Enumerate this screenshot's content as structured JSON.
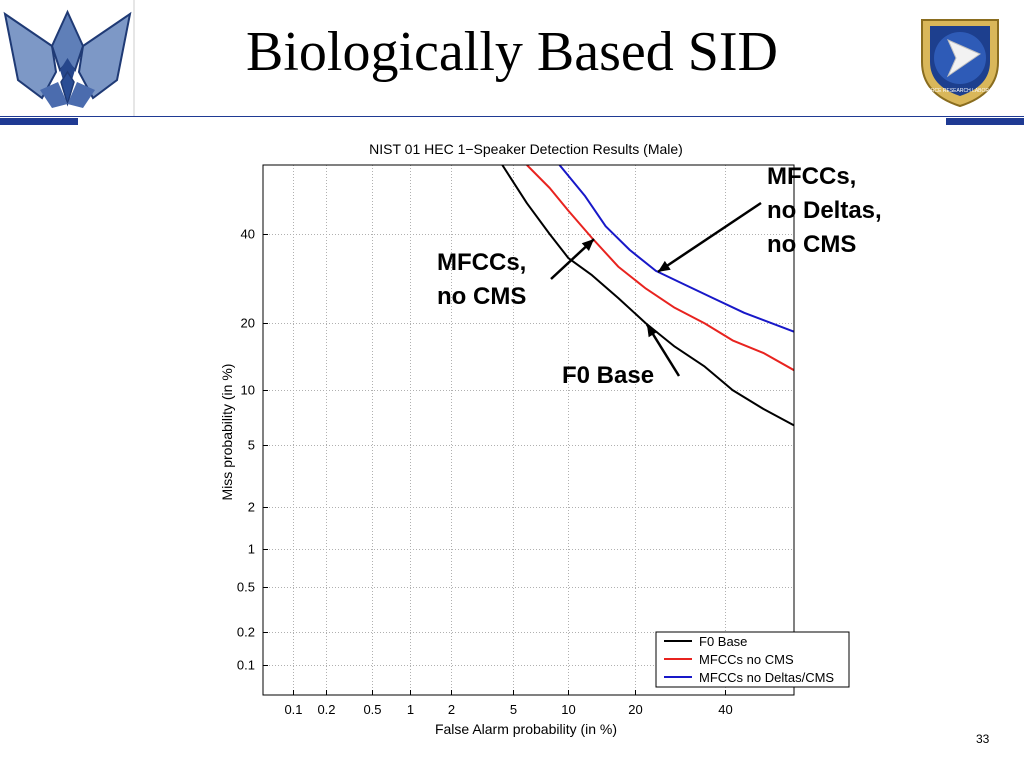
{
  "slide": {
    "title": "Biologically Based SID",
    "page_number": "33"
  },
  "callouts": {
    "blue": [
      "MFCCs,",
      "no Deltas,",
      "no CMS"
    ],
    "red": [
      "MFCCs,",
      "no CMS"
    ],
    "black": [
      "F0 Base"
    ]
  },
  "chart_data": {
    "type": "line",
    "title": "NIST 01 HEC 1−Speaker Detection Results (Male)",
    "xlabel": "False Alarm probability (in %)",
    "ylabel": "Miss probability (in %)",
    "scale": "normal-deviate (DET)",
    "xlim": [
      0.05,
      58
    ],
    "ylim": [
      0.05,
      58
    ],
    "xticks": [
      0.1,
      0.2,
      0.5,
      1,
      2,
      5,
      10,
      20,
      40
    ],
    "xtick_labels": [
      "0.1",
      "0.2",
      "0.5",
      "1",
      "2",
      "5",
      "10",
      "20",
      "40"
    ],
    "yticks": [
      0.1,
      0.2,
      0.5,
      1,
      2,
      5,
      10,
      20,
      40
    ],
    "ytick_labels": [
      "0.1",
      "0.2",
      "0.5",
      "1",
      "2",
      "5",
      "10",
      "20",
      "40"
    ],
    "grid": true,
    "legend_position": "bottom-right",
    "series": [
      {
        "name": "F0 Base",
        "color": "#000000",
        "x": [
          4.3,
          6,
          8,
          10,
          13,
          17,
          22,
          28,
          35,
          42,
          50,
          58
        ],
        "y": [
          58,
          48,
          40,
          34,
          30,
          25,
          20,
          16,
          13,
          10,
          8,
          6.5
        ]
      },
      {
        "name": "MFCCs no CMS",
        "color": "#e8231f",
        "x": [
          6,
          8,
          10,
          13,
          17,
          22,
          28,
          35,
          42,
          50,
          58
        ],
        "y": [
          58,
          52,
          46,
          39,
          32,
          27,
          23,
          20,
          17,
          15,
          12.5
        ]
      },
      {
        "name": "MFCCs no Deltas/CMS",
        "color": "#1818c8",
        "x": [
          9,
          12,
          15,
          19,
          24,
          30,
          37,
          45,
          58
        ],
        "y": [
          58,
          50,
          42,
          36,
          31,
          28,
          25,
          22,
          18.5
        ]
      }
    ]
  }
}
